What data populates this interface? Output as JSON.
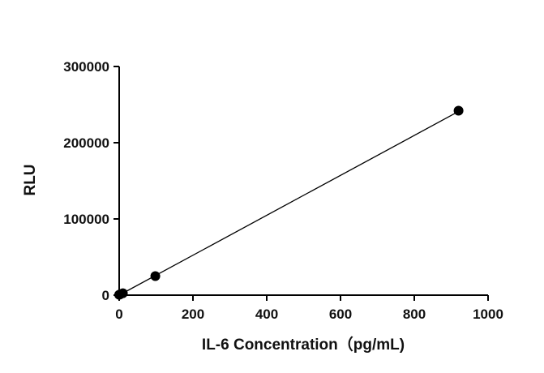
{
  "chart_data": {
    "type": "scatter",
    "title": "",
    "xlabel": "IL-6 Concentration（pg/mL)",
    "ylabel": "RLU",
    "xlim": [
      0,
      1000
    ],
    "ylim": [
      0,
      300000
    ],
    "x_ticks": [
      0,
      200,
      400,
      600,
      800,
      1000
    ],
    "y_ticks": [
      0,
      100000,
      200000,
      300000
    ],
    "x_tick_labels": [
      "0",
      "200",
      "400",
      "600",
      "800",
      "1000"
    ],
    "y_tick_labels": [
      "0",
      "100000",
      "200000",
      "300000"
    ],
    "grid": false,
    "series": [
      {
        "points": [
          {
            "x": 0,
            "y": 500
          },
          {
            "x": 3,
            "y": 1200
          },
          {
            "x": 10,
            "y": 2500
          },
          {
            "x": 98,
            "y": 25000
          },
          {
            "x": 920,
            "y": 242000
          }
        ],
        "fit_line": {
          "x": [
            0,
            920
          ],
          "y": [
            0,
            241000
          ]
        },
        "color": "#000000"
      }
    ]
  }
}
